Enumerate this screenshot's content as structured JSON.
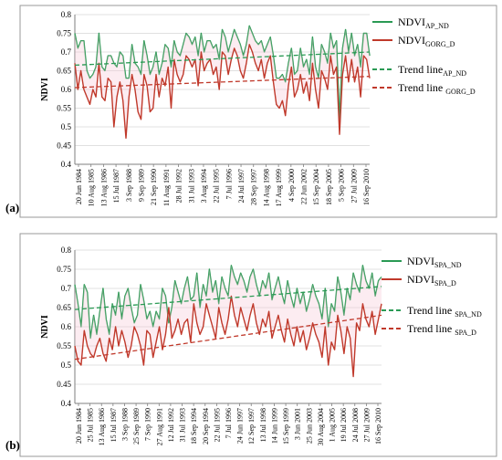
{
  "chart_data": [
    {
      "type": "line",
      "panel_label": "(a)",
      "ylabel": "NDVI",
      "ylim": [
        0.4,
        0.8
      ],
      "yticks": [
        "0.4",
        "0.45",
        "0.5",
        "0.55",
        "0.6",
        "0.65",
        "0.7",
        "0.75",
        "0.8"
      ],
      "xtick_labels": [
        "20 Jun 1984",
        "10 Aug 1985",
        "13 Aug 1986",
        "15 Jul 1987",
        "3 Sep 1988",
        "9 Sep 1989",
        "21 Sep 1990",
        "11 Aug 1991",
        "28 Jul 1992",
        "31 Jul 1993",
        "3 Aug 1994",
        "22 Jul 1995",
        "7 Jul 1996",
        "24 Jul 1997",
        "28 Sep 1997",
        "14 Aug 1998",
        "17 Aug 1999",
        "4 Sep 2000",
        "22 Jun 2002",
        "15 Sep 2004",
        "18 Sep 2005",
        "5 Sep 2006",
        "27 Jul 2009",
        "16 Sep 2010"
      ],
      "legend": {
        "placement": "top-right",
        "entries": [
          {
            "base": "NDVI",
            "sub": "AP_ND",
            "color": "#2a9a54",
            "style": "solid"
          },
          {
            "base": "NDVI",
            "sub": "GORG_D",
            "color": "#c0392b",
            "style": "solid"
          },
          {
            "base": "Trend line",
            "sub": "AP_ND",
            "color": "#2a9a54",
            "style": "dashed"
          },
          {
            "base": "Trend line ",
            "sub": "GORG_D",
            "color": "#c0392b",
            "style": "dashed"
          }
        ]
      },
      "series": [
        {
          "name": "NDVIAP_ND",
          "color": "#2a9a54",
          "values": [
            0.75,
            0.71,
            0.73,
            0.73,
            0.65,
            0.63,
            0.64,
            0.66,
            0.75,
            0.66,
            0.65,
            0.69,
            0.69,
            0.67,
            0.66,
            0.7,
            0.69,
            0.63,
            0.63,
            0.72,
            0.67,
            0.66,
            0.64,
            0.73,
            0.69,
            0.64,
            0.66,
            0.7,
            0.64,
            0.67,
            0.72,
            0.71,
            0.66,
            0.73,
            0.7,
            0.69,
            0.72,
            0.75,
            0.74,
            0.72,
            0.74,
            0.69,
            0.75,
            0.7,
            0.73,
            0.73,
            0.71,
            0.72,
            0.68,
            0.76,
            0.74,
            0.7,
            0.73,
            0.76,
            0.74,
            0.72,
            0.69,
            0.72,
            0.77,
            0.75,
            0.73,
            0.72,
            0.73,
            0.7,
            0.72,
            0.74,
            0.69,
            0.63,
            0.63,
            0.64,
            0.62,
            0.67,
            0.71,
            0.64,
            0.65,
            0.71,
            0.66,
            0.68,
            0.64,
            0.74,
            0.66,
            0.63,
            0.72,
            0.7,
            0.67,
            0.75,
            0.71,
            0.73,
            0.52,
            0.71,
            0.76,
            0.7,
            0.75,
            0.69,
            0.72,
            0.66,
            0.75,
            0.75,
            0.69
          ]
        },
        {
          "name": "NDVIGORG_D",
          "color": "#c0392b",
          "values": [
            0.67,
            0.6,
            0.65,
            0.6,
            0.58,
            0.56,
            0.6,
            0.58,
            0.67,
            0.58,
            0.57,
            0.63,
            0.62,
            0.5,
            0.58,
            0.62,
            0.57,
            0.47,
            0.58,
            0.64,
            0.6,
            0.54,
            0.52,
            0.64,
            0.61,
            0.54,
            0.55,
            0.64,
            0.58,
            0.63,
            0.61,
            0.66,
            0.55,
            0.68,
            0.64,
            0.62,
            0.64,
            0.69,
            0.68,
            0.66,
            0.68,
            0.61,
            0.7,
            0.65,
            0.67,
            0.68,
            0.64,
            0.66,
            0.6,
            0.7,
            0.69,
            0.64,
            0.68,
            0.71,
            0.69,
            0.65,
            0.63,
            0.67,
            0.72,
            0.7,
            0.67,
            0.65,
            0.68,
            0.63,
            0.67,
            0.69,
            0.62,
            0.56,
            0.55,
            0.57,
            0.53,
            0.61,
            0.66,
            0.58,
            0.6,
            0.64,
            0.59,
            0.62,
            0.57,
            0.67,
            0.6,
            0.55,
            0.65,
            0.63,
            0.6,
            0.69,
            0.64,
            0.66,
            0.48,
            0.64,
            0.69,
            0.62,
            0.68,
            0.62,
            0.66,
            0.58,
            0.69,
            0.68,
            0.63
          ]
        },
        {
          "name": "Trend lineAP_ND",
          "color": "#2a9a54",
          "style": "dashed",
          "values": [
            0.665,
            0.7
          ]
        },
        {
          "name": "Trend line GORG_D",
          "color": "#c0392b",
          "style": "dashed",
          "values": [
            0.605,
            0.635
          ]
        }
      ]
    },
    {
      "type": "line",
      "panel_label": "(b)",
      "ylabel": "NDVI",
      "ylim": [
        0.4,
        0.8
      ],
      "yticks": [
        "0.4",
        "0.45",
        "0.5",
        "0.55",
        "0.6",
        "0.65",
        "0.7",
        "0.75",
        "0.8"
      ],
      "xtick_labels": [
        "20 Jun 1984",
        "25 Jul 1985",
        "13 Aug 1986",
        "15 Jul 1987",
        "3 Sep 1988",
        "25 Sep 1989",
        "7 Sep 1990",
        "27 Aug 1991",
        "12 Jul 1992",
        "31 Jul 1993",
        "18 Sep 1994",
        "20 Sep 1994",
        "22 Jul 1995",
        "7 Jul 1996",
        "24 Jun 1997",
        "12 Sep 1997",
        "13 Jul 1998",
        "14 Jun 1999",
        "15 Sep 1999",
        "3 Jun 2001",
        "25 Jun 2003",
        "30 Aug 2004",
        "1 Aug 2005",
        "19 Jul 2006",
        "24 Jul 2008",
        "27 Jul 2009",
        "16 Sep 2010"
      ],
      "legend": {
        "placement": "top-right",
        "entries": [
          {
            "base": "NDVI",
            "sub": "SPA_ND",
            "color": "#2a9a54",
            "style": "solid"
          },
          {
            "base": "NDVI",
            "sub": "SPA_D",
            "color": "#c0392b",
            "style": "solid"
          },
          {
            "base": "Trend line ",
            "sub": "SPA_ND",
            "color": "#2a9a54",
            "style": "dashed"
          },
          {
            "base": "Trend line ",
            "sub": "SPA_D",
            "color": "#c0392b",
            "style": "dashed"
          }
        ]
      },
      "series": [
        {
          "name": "NDVISPA_ND",
          "color": "#2a9a54",
          "values": [
            0.71,
            0.66,
            0.6,
            0.71,
            0.69,
            0.57,
            0.63,
            0.58,
            0.64,
            0.7,
            0.62,
            0.58,
            0.66,
            0.63,
            0.69,
            0.62,
            0.68,
            0.7,
            0.65,
            0.61,
            0.63,
            0.71,
            0.67,
            0.62,
            0.64,
            0.6,
            0.64,
            0.62,
            0.7,
            0.68,
            0.61,
            0.65,
            0.72,
            0.69,
            0.66,
            0.7,
            0.73,
            0.67,
            0.68,
            0.74,
            0.65,
            0.71,
            0.68,
            0.75,
            0.69,
            0.72,
            0.66,
            0.73,
            0.7,
            0.68,
            0.76,
            0.73,
            0.71,
            0.74,
            0.72,
            0.69,
            0.73,
            0.75,
            0.71,
            0.68,
            0.72,
            0.7,
            0.74,
            0.67,
            0.7,
            0.73,
            0.69,
            0.66,
            0.72,
            0.68,
            0.65,
            0.7,
            0.66,
            0.69,
            0.64,
            0.67,
            0.71,
            0.68,
            0.66,
            0.62,
            0.7,
            0.6,
            0.66,
            0.64,
            0.73,
            0.69,
            0.63,
            0.7,
            0.67,
            0.74,
            0.71,
            0.69,
            0.76,
            0.72,
            0.7,
            0.74,
            0.68,
            0.72,
            0.73
          ]
        },
        {
          "name": "NDVISPA_D",
          "color": "#c0392b",
          "values": [
            0.55,
            0.51,
            0.5,
            0.59,
            0.55,
            0.53,
            0.52,
            0.55,
            0.57,
            0.53,
            0.51,
            0.57,
            0.54,
            0.6,
            0.55,
            0.59,
            0.56,
            0.52,
            0.55,
            0.6,
            0.58,
            0.55,
            0.5,
            0.59,
            0.58,
            0.52,
            0.56,
            0.6,
            0.54,
            0.58,
            0.65,
            0.57,
            0.59,
            0.62,
            0.58,
            0.61,
            0.62,
            0.56,
            0.66,
            0.61,
            0.58,
            0.6,
            0.66,
            0.63,
            0.6,
            0.57,
            0.65,
            0.61,
            0.58,
            0.62,
            0.68,
            0.63,
            0.6,
            0.65,
            0.62,
            0.59,
            0.63,
            0.66,
            0.61,
            0.58,
            0.62,
            0.6,
            0.64,
            0.57,
            0.6,
            0.63,
            0.59,
            0.56,
            0.62,
            0.58,
            0.55,
            0.6,
            0.56,
            0.59,
            0.54,
            0.57,
            0.61,
            0.58,
            0.56,
            0.52,
            0.6,
            0.5,
            0.56,
            0.54,
            0.63,
            0.59,
            0.53,
            0.6,
            0.57,
            0.47,
            0.61,
            0.59,
            0.66,
            0.62,
            0.6,
            0.64,
            0.58,
            0.62,
            0.66
          ]
        },
        {
          "name": "Trend line SPA_ND",
          "color": "#2a9a54",
          "style": "dashed",
          "values": [
            0.645,
            0.705
          ]
        },
        {
          "name": "Trend line SPA_D",
          "color": "#c0392b",
          "style": "dashed",
          "values": [
            0.515,
            0.63
          ]
        }
      ]
    }
  ]
}
